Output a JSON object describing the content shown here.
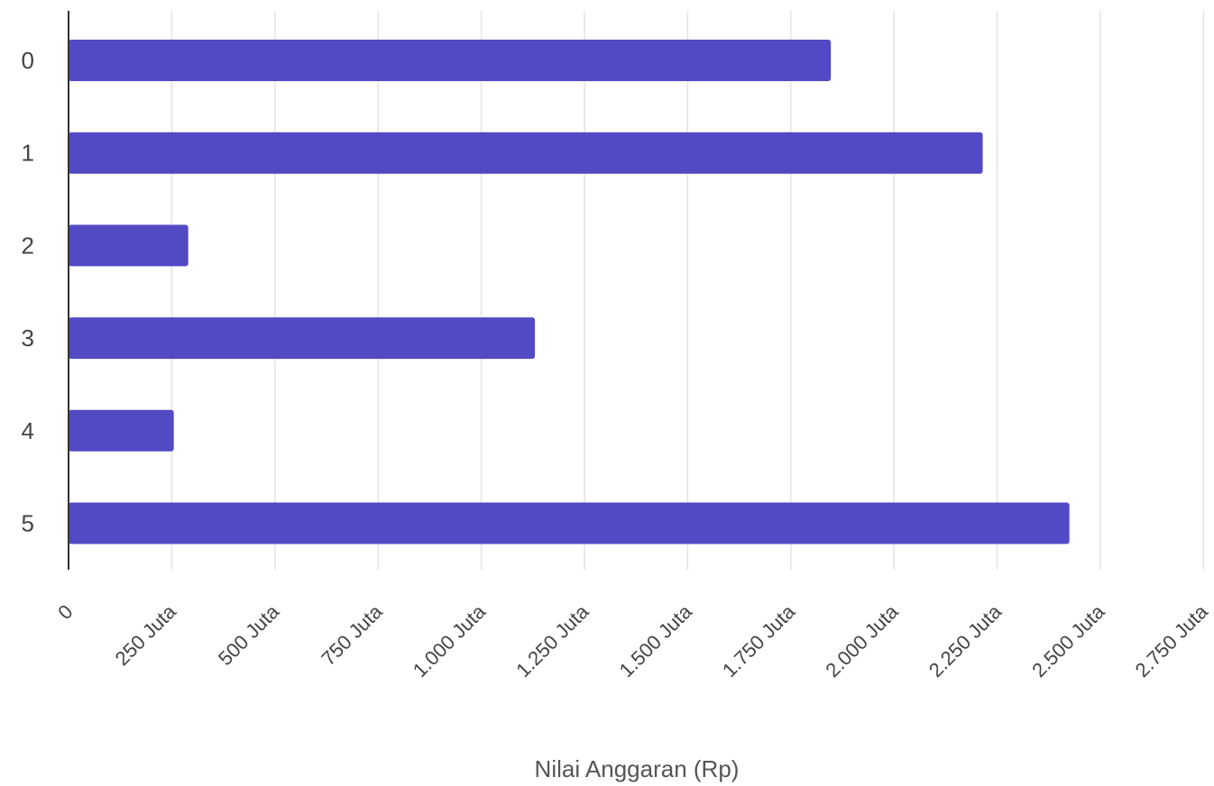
{
  "chart_data": {
    "type": "bar",
    "orientation": "horizontal",
    "categories": [
      "0",
      "1",
      "2",
      "3",
      "4",
      "5"
    ],
    "series": [
      {
        "values": [
          1847000000,
          2215000000,
          290000000,
          1130000000,
          255000000,
          2425000000
        ]
      }
    ],
    "xlabel": "Nilai Anggaran (Rp)",
    "ylabel": "",
    "xlim": [
      0,
      2750000000
    ],
    "x_ticks": [
      0,
      250000000,
      500000000,
      750000000,
      1000000000,
      1250000000,
      1500000000,
      1750000000,
      2000000000,
      2250000000,
      2500000000,
      2750000000
    ],
    "x_tick_labels": [
      "0",
      "250 Juta",
      "500 Juta",
      "750 Juta",
      "1.000 Juta",
      "1.250 Juta",
      "1.500 Juta",
      "1.750 Juta",
      "2.000 Juta",
      "2.250 Juta",
      "2.500 Juta",
      "2.750 Juta"
    ],
    "grid": true,
    "colors": {
      "bar": "#524ac5"
    }
  }
}
